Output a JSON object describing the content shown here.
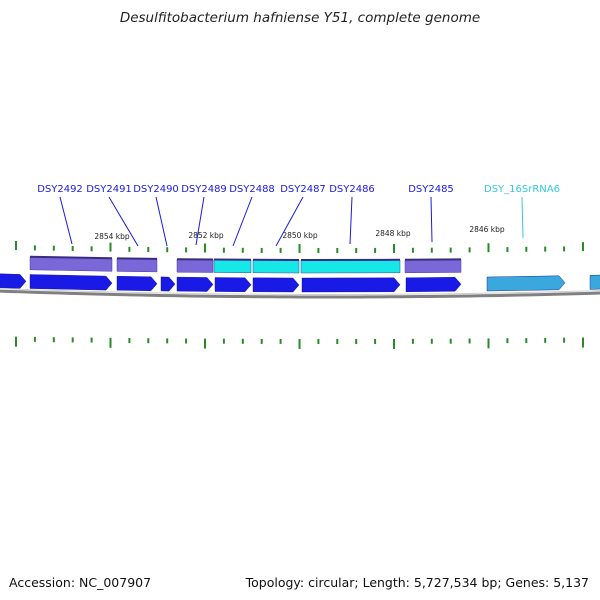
{
  "title": "Desulfitobacterium hafniense Y51, complete genome",
  "footer": {
    "accession": "Accession: NC_007907",
    "summary": "Topology: circular; Length: 5,727,534 bp; Genes: 5,137"
  },
  "colors": {
    "cds": "#1a1ae6",
    "cds_label": "#1a1ae0",
    "rna_label": "#33c6e8",
    "rna_fill": "#3aa8dc",
    "cog_purple": "#7b68d8",
    "cog_cyan": "#16e8e8",
    "tick": "#2a8a2a",
    "backbone": "#808080"
  },
  "scale_labels": [
    "2854 kbp",
    "2852 kbp",
    "2850 kbp",
    "2848 kbp",
    "2846 kbp"
  ],
  "genes": [
    {
      "label": "DSY2492",
      "kind": "cds"
    },
    {
      "label": "DSY2491",
      "kind": "cds"
    },
    {
      "label": "DSY2490",
      "kind": "cds"
    },
    {
      "label": "DSY2489",
      "kind": "cds"
    },
    {
      "label": "DSY2488",
      "kind": "cds"
    },
    {
      "label": "DSY2487",
      "kind": "cds"
    },
    {
      "label": "DSY2486",
      "kind": "cds"
    },
    {
      "label": "DSY2485",
      "kind": "cds"
    },
    {
      "label": "DSY_16SrRNA6",
      "kind": "rna"
    }
  ]
}
